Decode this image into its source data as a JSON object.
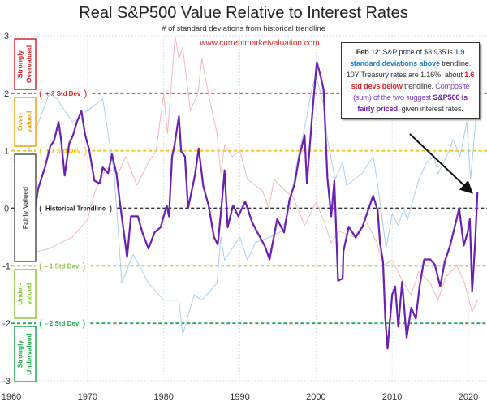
{
  "chart_data": {
    "type": "line",
    "title": "Real S&P500 Value Relative to Interest Rates",
    "subtitle": "# of standard deviations from historical trendline",
    "watermark": "www.currentmarketvaluation.com",
    "xlim": [
      1960,
      2022
    ],
    "ylim": [
      -3,
      3
    ],
    "x_ticks": [
      "1960",
      "1970",
      "1980",
      "1990",
      "2000",
      "2010",
      "2020"
    ],
    "y_ticks": [
      "3",
      "2",
      "1",
      "0",
      "-1",
      "-2",
      "-3"
    ],
    "grid": "vertical dashed at decades",
    "reference_lines": [
      {
        "value": 2,
        "label": "+ 2 Std Dev",
        "color": "#d9262a"
      },
      {
        "value": 1,
        "label": "+ 1 Std Dev",
        "color": "#f2c20f"
      },
      {
        "value": 0,
        "label": "Historical Trendline",
        "color": "#333333"
      },
      {
        "value": -1,
        "label": "- 1 Std Dev",
        "color": "#8cc63f"
      },
      {
        "value": -2,
        "label": "- 2 Std Dev",
        "color": "#22a94a"
      }
    ],
    "zones": [
      {
        "lines": [
          "Strongly",
          "Overvalued"
        ],
        "color": "#d9262a"
      },
      {
        "lines": [
          "Over-",
          "valued"
        ],
        "color": "#f2a20f"
      },
      {
        "lines": [
          "Fairly Valued"
        ],
        "color": "#555555"
      },
      {
        "lines": [
          "Under-",
          "valued"
        ],
        "color": "#8cc63f"
      },
      {
        "lines": [
          "Strongly",
          "Undervalued"
        ],
        "color": "#22a94a"
      }
    ],
    "series": [
      {
        "key": "rates",
        "color": "#f4b8b8",
        "x": [
          1962,
          1965,
          1968,
          1970,
          1971,
          1972.5,
          1974,
          1975,
          1976.5,
          1978,
          1979,
          1980,
          1980.5,
          1981.5,
          1982,
          1982.5,
          1983.5,
          1984.5,
          1985,
          1986,
          1987,
          1987.5,
          1988,
          1989,
          1990,
          1991,
          1993,
          1993.8,
          1994.5,
          1996,
          1997,
          1998.5,
          2000,
          2001,
          2002,
          2003,
          2005,
          2006.5,
          2008,
          2008.8,
          2010,
          2011.5,
          2012.5,
          2013.5,
          2015,
          2016,
          2017,
          2018.5,
          2019.5,
          2020.5,
          2021.2
        ],
        "y": [
          -0.8,
          -0.7,
          -0.5,
          -0.2,
          0.3,
          0.7,
          0.6,
          0.9,
          0.4,
          0.8,
          1.0,
          2.0,
          1.3,
          3.0,
          2.6,
          2.8,
          1.7,
          2.0,
          2.6,
          1.9,
          1.3,
          0.6,
          1.1,
          0.9,
          1.0,
          0.5,
          0.3,
          0.0,
          0.5,
          0.3,
          0.2,
          -0.3,
          0.1,
          -0.2,
          -0.6,
          -0.4,
          -0.5,
          -0.2,
          -0.6,
          -1.0,
          -0.9,
          -1.3,
          -1.5,
          -1.1,
          -1.3,
          -1.6,
          -1.2,
          -1.0,
          -1.3,
          -1.8,
          -1.6
        ]
      },
      {
        "key": "sp500",
        "color": "#a9cfee",
        "x": [
          1960,
          1962,
          1963,
          1965,
          1966,
          1968,
          1969,
          1972,
          1973.5,
          1974.5,
          1976,
          1978,
          1980,
          1982,
          1982.5,
          1984,
          1985,
          1987,
          1987.5,
          1988,
          1990,
          1991,
          1992,
          1994,
          1995.5,
          1996.5,
          1997.5,
          1998.5,
          1999.5,
          2000,
          2001,
          2001.5,
          2002.5,
          2003.5,
          2004,
          2005,
          2006,
          2007.5,
          2008,
          2009.2,
          2010,
          2010.8,
          2011.5,
          2012,
          2013.5,
          2014.5,
          2015.5,
          2016,
          2017.5,
          2018,
          2018.9,
          2019.8,
          2020.3,
          2021.2
        ],
        "y": [
          0.8,
          0.9,
          1.3,
          2.0,
          1.9,
          1.5,
          1.6,
          1.9,
          0.6,
          -1.3,
          -0.8,
          -1.3,
          -1.6,
          -1.6,
          -2.2,
          -1.5,
          -1.6,
          -1.3,
          -0.5,
          -0.9,
          -0.5,
          -0.9,
          -0.6,
          -0.5,
          -0.4,
          0.0,
          0.8,
          1.4,
          2.1,
          2.3,
          1.8,
          1.2,
          0.5,
          0.8,
          0.4,
          0.5,
          0.6,
          0.9,
          0.5,
          -0.7,
          -0.1,
          -0.3,
          0.0,
          -0.2,
          0.5,
          0.8,
          0.9,
          0.6,
          1.0,
          1.2,
          0.9,
          1.5,
          0.5,
          1.9
        ]
      },
      {
        "key": "composite",
        "color": "#6a1fb0",
        "x": [
          1962.4,
          1962.8,
          1963.1,
          1963.5,
          1964.4,
          1965.1,
          1965.6,
          1966.2,
          1966.5,
          1967,
          1967.6,
          1968.1,
          1968.6,
          1969.2,
          1969.7,
          1970.2,
          1970.9,
          1971.6,
          1972,
          1972.7,
          1973.2,
          1973.8,
          1974.3,
          1975.2,
          1975.7,
          1976.6,
          1977.2,
          1978,
          1978.8,
          1979.6,
          1980.4,
          1980.7,
          1981.1,
          1981.4,
          1982,
          1982.3,
          1982.8,
          1983.2,
          1984.1,
          1984.6,
          1985.2,
          1985.9,
          1986.6,
          1987.1,
          1987.6,
          1988,
          1988.4,
          1989.1,
          1989.8,
          1990.7,
          1991.6,
          1992.3,
          1993.3,
          1993.9,
          1994.9,
          1995.8,
          1996.5,
          1997.2,
          1997.8,
          1998.5,
          1998.8,
          1999.6,
          2000.1,
          2000.6,
          2001,
          2001.5,
          2002,
          2002.4,
          2002.9,
          2003.5,
          2003.6,
          2004.3,
          2005.2,
          2006.1,
          2006.7,
          2007.5,
          2008.1,
          2008.4,
          2008.8,
          2009.1,
          2009.4,
          2010,
          2010.4,
          2010.8,
          2011.3,
          2011.9,
          2012.5,
          2013.1,
          2013.6,
          2014.2,
          2015,
          2015.6,
          2016.3,
          2016.9,
          2017.6,
          2018.3,
          2018.8,
          2019.4,
          2019.9,
          2020.2,
          2020.5,
          2020.9,
          2021.2
        ],
        "y": [
          0.76,
          -0.23,
          -0.04,
          0.33,
          0.71,
          1.08,
          1.17,
          1.5,
          1.22,
          0.57,
          1.13,
          1.27,
          1.5,
          1.69,
          1.27,
          1.03,
          0.48,
          0.43,
          0.71,
          0.61,
          0.94,
          0.6,
          0.05,
          -0.85,
          -0.14,
          -0.14,
          -0.42,
          -0.7,
          -0.42,
          -0.33,
          0.05,
          -0.14,
          0.9,
          1.08,
          1.6,
          0.99,
          0.9,
          0.0,
          0.57,
          1.04,
          0.38,
          0.05,
          -0.5,
          -0.63,
          0.05,
          0.66,
          -0.33,
          0.05,
          -0.14,
          0.12,
          -0.24,
          -0.42,
          -0.66,
          -0.89,
          -0.19,
          -0.42,
          0.14,
          0.43,
          0.9,
          1.27,
          0.43,
          1.79,
          2.54,
          2.3,
          2.06,
          0.52,
          -0.14,
          0.48,
          -1.26,
          -1.22,
          -0.75,
          -0.32,
          -0.51,
          -0.32,
          -0.09,
          0.22,
          -0.04,
          -0.6,
          -0.93,
          -1.92,
          -2.44,
          -1.5,
          -1.36,
          -2.06,
          -1.28,
          -2.25,
          -1.73,
          -1.92,
          -1.36,
          -0.89,
          -0.89,
          -0.98,
          -1.36,
          -0.93,
          -0.65,
          -0.28,
          0.0,
          -0.65,
          -0.42,
          -0.19,
          -1.45,
          -0.6,
          0.29
        ]
      }
    ]
  },
  "annotation": {
    "date": "Feb 12",
    "t1": ": S&P price of $3,935 is ",
    "sp_dev": "1.9 standard deviations above",
    "t2": " trendline. 10Y Treasury rates are 1.16%, about ",
    "rate_dev": "1.6 std devs below",
    "t3": " trendline. ",
    "composite_intro": "Composite (sum) of the two suggest ",
    "verdict": "S&P500 is fairly priced",
    "t4": ", given interest rates.",
    "colors": {
      "blue": "#1f7fd1",
      "red": "#d9262a",
      "purple": "#7b3fc4"
    }
  }
}
